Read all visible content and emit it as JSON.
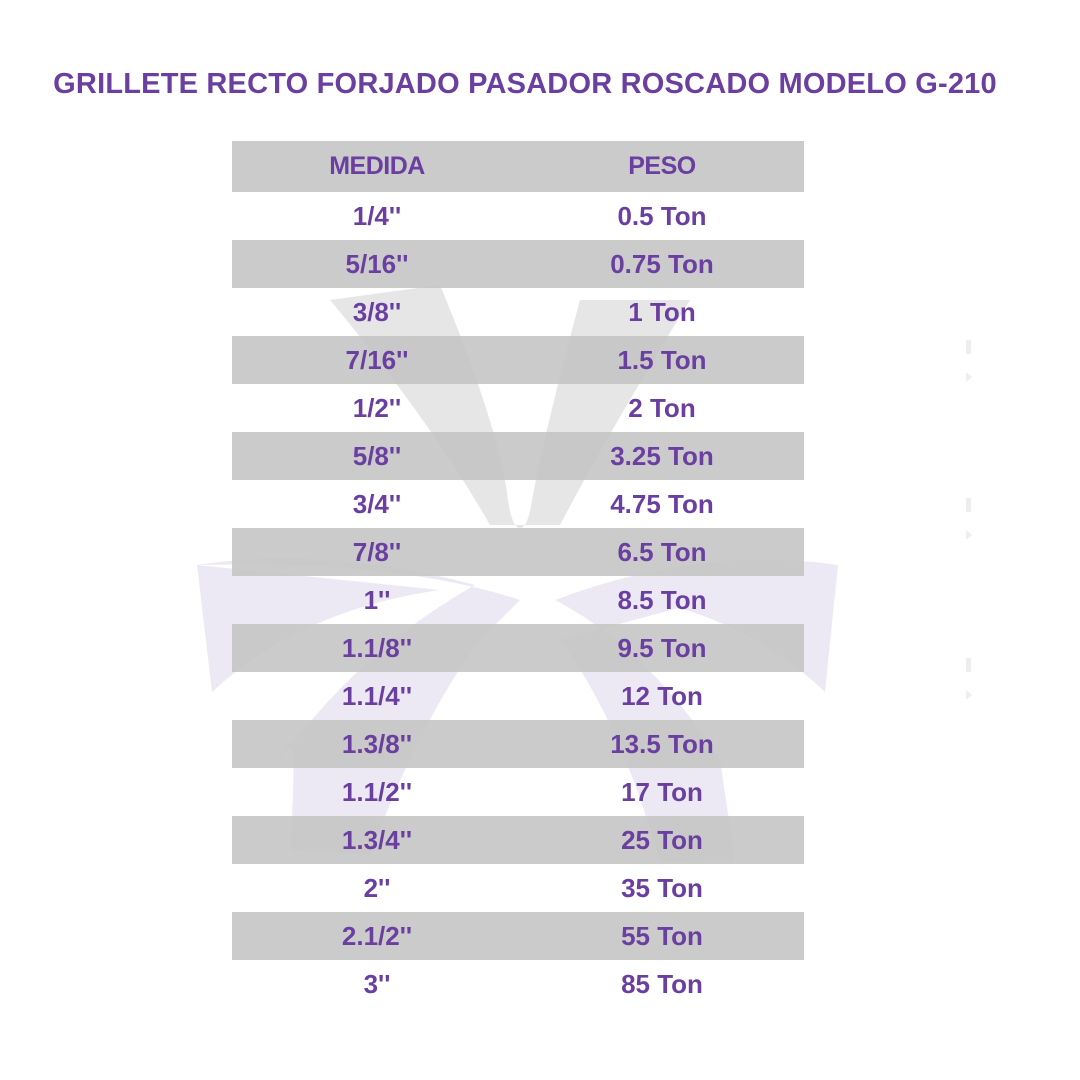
{
  "title": "GRILLETE RECTO FORJADO PASADOR ROSCADO MODELO G-210",
  "table": {
    "headers": {
      "medida": "MEDIDA",
      "peso": "PESO"
    },
    "rows": [
      {
        "medida": "1/4''",
        "peso": "0.5 Ton"
      },
      {
        "medida": "5/16''",
        "peso": "0.75 Ton"
      },
      {
        "medida": "3/8''",
        "peso": "1 Ton"
      },
      {
        "medida": "7/16''",
        "peso": "1.5 Ton"
      },
      {
        "medida": "1/2''",
        "peso": "2 Ton"
      },
      {
        "medida": "5/8''",
        "peso": "3.25 Ton"
      },
      {
        "medida": "3/4''",
        "peso": "4.75 Ton"
      },
      {
        "medida": "7/8''",
        "peso": "6.5 Ton"
      },
      {
        "medida": "1''",
        "peso": "8.5 Ton"
      },
      {
        "medida": "1.1/8''",
        "peso": "9.5 Ton"
      },
      {
        "medida": "1.1/4''",
        "peso": "12 Ton"
      },
      {
        "medida": "1.3/8''",
        "peso": "13.5 Ton"
      },
      {
        "medida": "1.1/2''",
        "peso": "17 Ton"
      },
      {
        "medida": "1.3/4''",
        "peso": "25 Ton"
      },
      {
        "medida": "2''",
        "peso": "35 Ton"
      },
      {
        "medida": "2.1/2''",
        "peso": "55 Ton"
      },
      {
        "medida": "3''",
        "peso": "85 Ton"
      }
    ]
  },
  "colors": {
    "text": "#6a3fa0",
    "row_shade": "#c4c4c4",
    "watermark_upper": "#e6e6e6",
    "watermark_lower": "#ece9f5"
  },
  "watermark": {
    "icon": "logo-watermark-icon"
  }
}
